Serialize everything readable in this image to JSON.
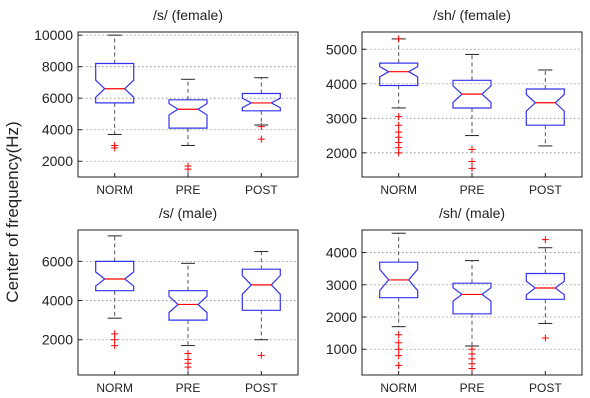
{
  "figure": {
    "ylabel": "Center of frequency(Hz)"
  },
  "colors": {
    "box": "#3333ee",
    "median": "#ff0000",
    "whisker": "#555555",
    "outlier": "#ff0000",
    "grid": "#888888",
    "axes": "#222222"
  },
  "chart_data": [
    {
      "type": "box",
      "title": "/s/ (female)",
      "categories": [
        "NORM",
        "PRE",
        "POST"
      ],
      "ylim": [
        1000,
        10200
      ],
      "yticks": [
        2000,
        4000,
        6000,
        8000,
        10000
      ],
      "grid": true,
      "boxes": [
        {
          "category": "NORM",
          "whisker_low": 3700,
          "q1": 5700,
          "median": 6600,
          "q3": 8200,
          "whisker_high": 10000,
          "outliers": [
            2850,
            3000
          ]
        },
        {
          "category": "PRE",
          "whisker_low": 3000,
          "q1": 4100,
          "median": 5300,
          "q3": 5900,
          "whisker_high": 7200,
          "outliers": [
            1500,
            1700
          ]
        },
        {
          "category": "POST",
          "whisker_low": 4300,
          "q1": 5200,
          "median": 5700,
          "q3": 6300,
          "whisker_high": 7300,
          "outliers": [
            3400,
            4200
          ]
        }
      ]
    },
    {
      "type": "box",
      "title": "/sh/ (female)",
      "categories": [
        "NORM",
        "PRE",
        "POST"
      ],
      "ylim": [
        1300,
        5500
      ],
      "yticks": [
        2000,
        3000,
        4000,
        5000
      ],
      "grid": true,
      "boxes": [
        {
          "category": "NORM",
          "whisker_low": 3300,
          "q1": 3950,
          "median": 4350,
          "q3": 4600,
          "whisker_high": 5300,
          "outliers": [
            2000,
            2150,
            2300,
            2450,
            2600,
            2800,
            3050,
            5300
          ]
        },
        {
          "category": "PRE",
          "whisker_low": 2500,
          "q1": 3300,
          "median": 3700,
          "q3": 4100,
          "whisker_high": 4850,
          "outliers": [
            1550,
            1750,
            2100
          ]
        },
        {
          "category": "POST",
          "whisker_low": 2200,
          "q1": 2800,
          "median": 3450,
          "q3": 3850,
          "whisker_high": 4400,
          "outliers": []
        }
      ]
    },
    {
      "type": "box",
      "title": "/s/ (male)",
      "categories": [
        "NORM",
        "PRE",
        "POST"
      ],
      "ylim": [
        200,
        7600
      ],
      "yticks": [
        2000,
        4000,
        6000
      ],
      "grid": true,
      "boxes": [
        {
          "category": "NORM",
          "whisker_low": 3100,
          "q1": 4500,
          "median": 5100,
          "q3": 6000,
          "whisker_high": 7300,
          "outliers": [
            1700,
            2000,
            2300
          ]
        },
        {
          "category": "PRE",
          "whisker_low": 1700,
          "q1": 3000,
          "median": 3800,
          "q3": 4500,
          "whisker_high": 5900,
          "outliers": [
            600,
            800,
            1000,
            1300
          ]
        },
        {
          "category": "POST",
          "whisker_low": 2000,
          "q1": 3500,
          "median": 4800,
          "q3": 5600,
          "whisker_high": 6500,
          "outliers": [
            1200
          ]
        }
      ]
    },
    {
      "type": "box",
      "title": "/sh/ (male)",
      "categories": [
        "NORM",
        "PRE",
        "POST"
      ],
      "ylim": [
        200,
        4700
      ],
      "yticks": [
        1000,
        2000,
        3000,
        4000
      ],
      "grid": true,
      "boxes": [
        {
          "category": "NORM",
          "whisker_low": 1700,
          "q1": 2600,
          "median": 3150,
          "q3": 3700,
          "whisker_high": 4600,
          "outliers": [
            500,
            800,
            1000,
            1200,
            1450
          ]
        },
        {
          "category": "PRE",
          "whisker_low": 1100,
          "q1": 2100,
          "median": 2700,
          "q3": 3050,
          "whisker_high": 3750,
          "outliers": [
            400,
            550,
            700,
            850,
            1000
          ]
        },
        {
          "category": "POST",
          "whisker_low": 1800,
          "q1": 2550,
          "median": 2900,
          "q3": 3350,
          "whisker_high": 4150,
          "outliers": [
            1350,
            4400
          ]
        }
      ]
    }
  ]
}
